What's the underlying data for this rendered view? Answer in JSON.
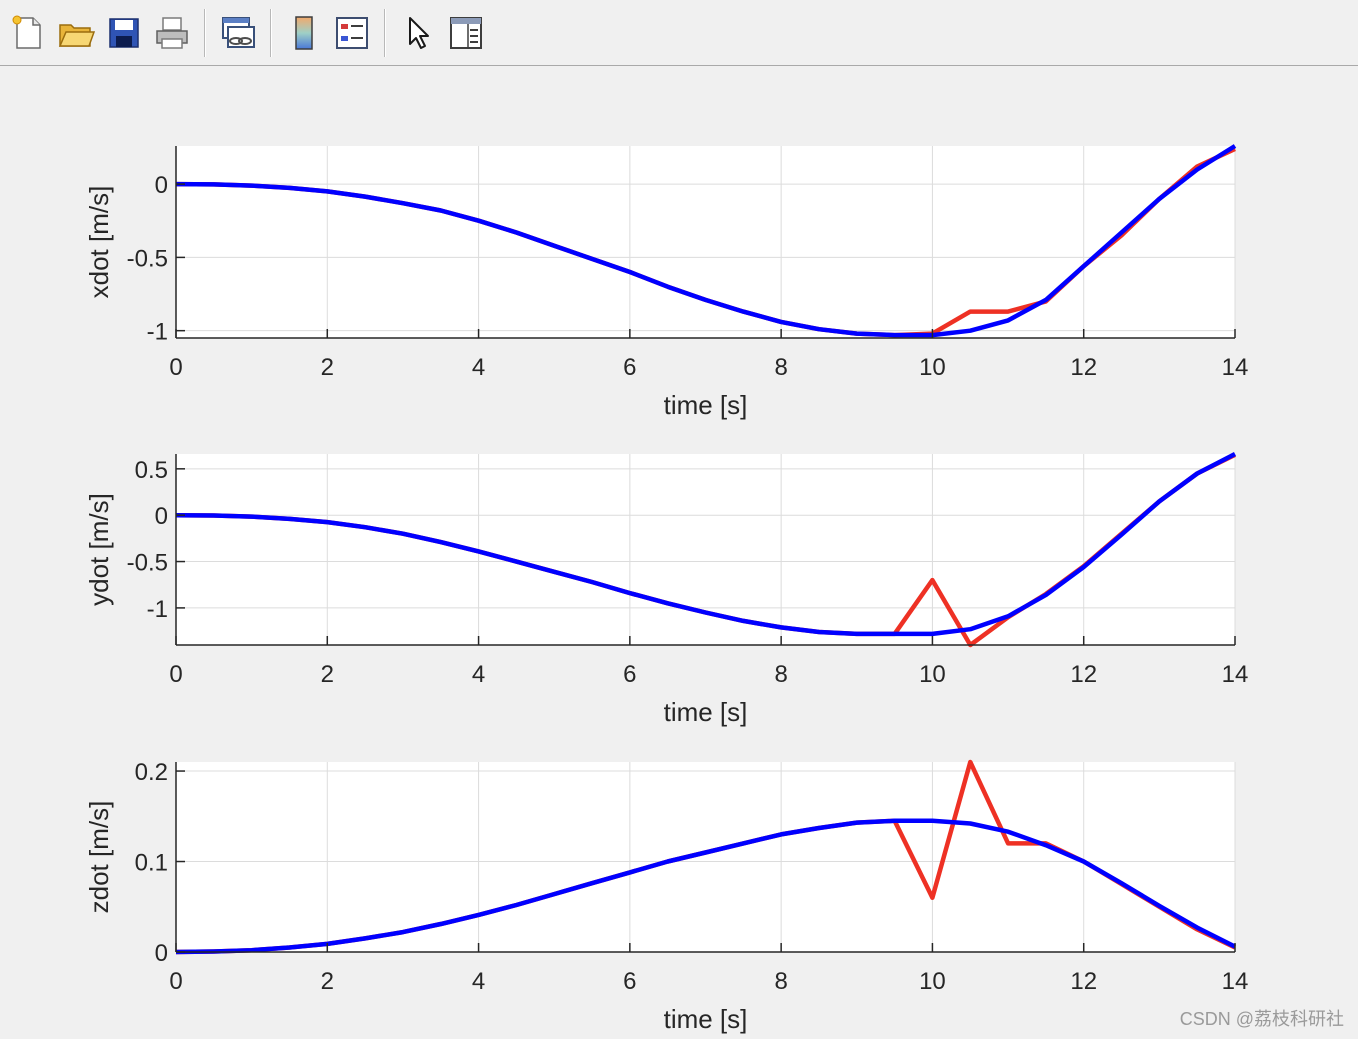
{
  "toolbar": {
    "buttons": [
      {
        "name": "new-figure-icon"
      },
      {
        "name": "open-file-icon"
      },
      {
        "name": "save-icon"
      },
      {
        "name": "print-icon"
      },
      {
        "name": "link-plot-icon"
      },
      {
        "name": "colorbar-icon"
      },
      {
        "name": "legend-icon"
      },
      {
        "name": "edit-plot-arrow-icon"
      },
      {
        "name": "property-inspector-icon"
      }
    ]
  },
  "colors": {
    "reference": "#ee3124",
    "actual": "#0000ff",
    "grid": "#dcdcdc",
    "axis": "#262626"
  },
  "watermark": "CSDN @荔枝科研社",
  "chart_data": [
    {
      "type": "line",
      "xlabel": "time [s]",
      "ylabel": "xdot [m/s]",
      "xlim": [
        0,
        14
      ],
      "ylim": [
        -1.05,
        0.26
      ],
      "xticks": [
        0,
        2,
        4,
        6,
        8,
        10,
        12,
        14
      ],
      "yticks": [
        -1,
        -0.5,
        0
      ],
      "xtick_labels": [
        "0",
        "2",
        "4",
        "6",
        "8",
        "10",
        "12",
        "14"
      ],
      "ytick_labels": [
        "-1",
        "-0.5",
        "0"
      ],
      "grid": true,
      "series": [
        {
          "color": "#ee3124",
          "x": [
            0,
            0.5,
            1,
            1.5,
            2,
            2.5,
            3,
            3.5,
            4,
            4.5,
            5,
            5.5,
            6,
            6.5,
            7,
            7.5,
            8,
            8.5,
            9,
            9.5,
            10,
            10.5,
            11,
            11.5,
            12,
            12.5,
            13,
            13.5,
            14
          ],
          "y": [
            0,
            -0.002,
            -0.01,
            -0.026,
            -0.05,
            -0.085,
            -0.13,
            -0.18,
            -0.25,
            -0.33,
            -0.42,
            -0.51,
            -0.6,
            -0.7,
            -0.79,
            -0.87,
            -0.94,
            -0.99,
            -1.02,
            -1.03,
            -1.02,
            -0.87,
            -0.87,
            -0.8,
            -0.56,
            -0.35,
            -0.1,
            0.12,
            0.24
          ]
        },
        {
          "color": "#0000ff",
          "x": [
            0,
            0.5,
            1,
            1.5,
            2,
            2.5,
            3,
            3.5,
            4,
            4.5,
            5,
            5.5,
            6,
            6.5,
            7,
            7.5,
            8,
            8.5,
            9,
            9.5,
            10,
            10.5,
            11,
            11.5,
            12,
            12.5,
            13,
            13.5,
            14
          ],
          "y": [
            0,
            -0.002,
            -0.01,
            -0.026,
            -0.05,
            -0.085,
            -0.13,
            -0.18,
            -0.25,
            -0.33,
            -0.42,
            -0.51,
            -0.6,
            -0.7,
            -0.79,
            -0.87,
            -0.94,
            -0.99,
            -1.02,
            -1.03,
            -1.03,
            -1.0,
            -0.93,
            -0.79,
            -0.56,
            -0.33,
            -0.1,
            0.1,
            0.26
          ]
        }
      ]
    },
    {
      "type": "line",
      "xlabel": "time [s]",
      "ylabel": "ydot [m/s]",
      "xlim": [
        0,
        14
      ],
      "ylim": [
        -1.4,
        0.66
      ],
      "xticks": [
        0,
        2,
        4,
        6,
        8,
        10,
        12,
        14
      ],
      "yticks": [
        -1,
        -0.5,
        0,
        0.5
      ],
      "xtick_labels": [
        "0",
        "2",
        "4",
        "6",
        "8",
        "10",
        "12",
        "14"
      ],
      "ytick_labels": [
        "-1",
        "-0.5",
        "0",
        "0.5"
      ],
      "grid": true,
      "series": [
        {
          "color": "#ee3124",
          "x": [
            0,
            0.5,
            1,
            1.5,
            2,
            2.5,
            3,
            3.5,
            4,
            4.5,
            5,
            5.5,
            6,
            6.5,
            7,
            7.5,
            8,
            8.5,
            9,
            9.5,
            10,
            10.5,
            11,
            11.5,
            12,
            12.5,
            13,
            13.5,
            14
          ],
          "y": [
            0,
            -0.003,
            -0.015,
            -0.04,
            -0.075,
            -0.13,
            -0.2,
            -0.29,
            -0.39,
            -0.5,
            -0.61,
            -0.72,
            -0.84,
            -0.95,
            -1.05,
            -1.14,
            -1.21,
            -1.26,
            -1.28,
            -1.28,
            -0.7,
            -1.4,
            -1.1,
            -0.85,
            -0.55,
            -0.2,
            0.15,
            0.45,
            0.65
          ]
        },
        {
          "color": "#0000ff",
          "x": [
            0,
            0.5,
            1,
            1.5,
            2,
            2.5,
            3,
            3.5,
            4,
            4.5,
            5,
            5.5,
            6,
            6.5,
            7,
            7.5,
            8,
            8.5,
            9,
            9.5,
            10,
            10.5,
            11,
            11.5,
            12,
            12.5,
            13,
            13.5,
            14
          ],
          "y": [
            0,
            -0.003,
            -0.015,
            -0.04,
            -0.075,
            -0.13,
            -0.2,
            -0.29,
            -0.39,
            -0.5,
            -0.61,
            -0.72,
            -0.84,
            -0.95,
            -1.05,
            -1.14,
            -1.21,
            -1.26,
            -1.28,
            -1.28,
            -1.28,
            -1.23,
            -1.09,
            -0.86,
            -0.56,
            -0.21,
            0.15,
            0.45,
            0.66
          ]
        }
      ]
    },
    {
      "type": "line",
      "xlabel": "time [s]",
      "ylabel": "zdot [m/s]",
      "xlim": [
        0,
        14
      ],
      "ylim": [
        0,
        0.21
      ],
      "xticks": [
        0,
        2,
        4,
        6,
        8,
        10,
        12,
        14
      ],
      "yticks": [
        0,
        0.1,
        0.2
      ],
      "xtick_labels": [
        "0",
        "2",
        "4",
        "6",
        "8",
        "10",
        "12",
        "14"
      ],
      "ytick_labels": [
        "0",
        "0.1",
        "0.2"
      ],
      "grid": true,
      "series": [
        {
          "color": "#ee3124",
          "x": [
            0,
            0.5,
            1,
            1.5,
            2,
            2.5,
            3,
            3.5,
            4,
            4.5,
            5,
            5.5,
            6,
            6.5,
            7,
            7.5,
            8,
            8.5,
            9,
            9.5,
            10,
            10.5,
            11,
            11.5,
            12,
            12.5,
            13,
            13.5,
            14
          ],
          "y": [
            0,
            0.0005,
            0.002,
            0.005,
            0.009,
            0.015,
            0.022,
            0.031,
            0.041,
            0.052,
            0.064,
            0.076,
            0.088,
            0.1,
            0.11,
            0.12,
            0.13,
            0.137,
            0.143,
            0.145,
            0.06,
            0.21,
            0.12,
            0.12,
            0.1,
            0.075,
            0.05,
            0.025,
            0.005
          ]
        },
        {
          "color": "#0000ff",
          "x": [
            0,
            0.5,
            1,
            1.5,
            2,
            2.5,
            3,
            3.5,
            4,
            4.5,
            5,
            5.5,
            6,
            6.5,
            7,
            7.5,
            8,
            8.5,
            9,
            9.5,
            10,
            10.5,
            11,
            11.5,
            12,
            12.5,
            13,
            13.5,
            14
          ],
          "y": [
            0,
            0.0005,
            0.002,
            0.005,
            0.009,
            0.015,
            0.022,
            0.031,
            0.041,
            0.052,
            0.064,
            0.076,
            0.088,
            0.1,
            0.11,
            0.12,
            0.13,
            0.137,
            0.143,
            0.145,
            0.145,
            0.142,
            0.133,
            0.118,
            0.1,
            0.076,
            0.051,
            0.027,
            0.006
          ]
        }
      ]
    }
  ]
}
